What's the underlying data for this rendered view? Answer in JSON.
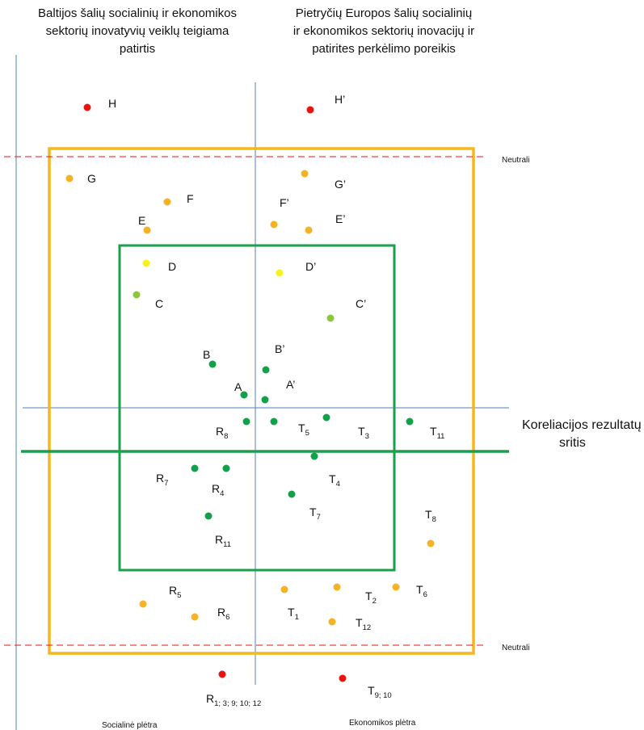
{
  "header": {
    "left": [
      "Baltijos šalių socialinių ir ekonomikos",
      "sektorių inovatyvių veiklų teigiama",
      "patirtis"
    ],
    "right": [
      "Pietryčių Europos šalių socialinių",
      "ir ekonomikos sektorių inovacijų ir",
      "patirites perkėlimo poreikis"
    ]
  },
  "labels": {
    "neutral_top": "Neutrali",
    "neutral_bottom": "Neutrali",
    "correlation_line1": "Koreliacijos rezultatų",
    "correlation_line2": "sritis",
    "axis_social": "Socialinė plėtra",
    "axis_economic": "Ekonomikos plėtra"
  },
  "colors": {
    "red": "#e8150f",
    "orange": "#f5b225",
    "yellow": "#f7f21a",
    "lightgreen": "#8cc63f",
    "green": "#13a04a",
    "frame": "#f5b81c",
    "inner": "#1aa04d",
    "axis": "#4f7fbf",
    "neutral": "#e8150f"
  },
  "points": [
    {
      "id": "H",
      "main": "H",
      "sub": "",
      "color": "red"
    },
    {
      "id": "H2",
      "main": "H’",
      "sub": "",
      "color": "red"
    },
    {
      "id": "G",
      "main": "G",
      "sub": "",
      "color": "orange"
    },
    {
      "id": "G2",
      "main": "G’",
      "sub": "",
      "color": "orange"
    },
    {
      "id": "F",
      "main": "F",
      "sub": "",
      "color": "orange"
    },
    {
      "id": "F2",
      "main": "F’",
      "sub": "",
      "color": "orange"
    },
    {
      "id": "E",
      "main": "E",
      "sub": "",
      "color": "orange"
    },
    {
      "id": "E2",
      "main": "E’",
      "sub": "",
      "color": "orange"
    },
    {
      "id": "D",
      "main": "D",
      "sub": "",
      "color": "yellow"
    },
    {
      "id": "D2",
      "main": "D’",
      "sub": "",
      "color": "yellow"
    },
    {
      "id": "C",
      "main": "C",
      "sub": "",
      "color": "lightgreen"
    },
    {
      "id": "C2",
      "main": "C’",
      "sub": "",
      "color": "lightgreen"
    },
    {
      "id": "B",
      "main": "B",
      "sub": "",
      "color": "green"
    },
    {
      "id": "B2",
      "main": "B’",
      "sub": "",
      "color": "green"
    },
    {
      "id": "A",
      "main": "A",
      "sub": "",
      "color": "green"
    },
    {
      "id": "A2",
      "main": "A’",
      "sub": "",
      "color": "green"
    },
    {
      "id": "R8",
      "main": "R",
      "sub": "8",
      "color": "green"
    },
    {
      "id": "T5",
      "main": "T",
      "sub": "5",
      "color": "green"
    },
    {
      "id": "T3",
      "main": "T",
      "sub": "3",
      "color": "green"
    },
    {
      "id": "T11",
      "main": "T",
      "sub": "11",
      "color": "green"
    },
    {
      "id": "T4",
      "main": "T",
      "sub": "4",
      "color": "green"
    },
    {
      "id": "R7",
      "main": "R",
      "sub": "7",
      "color": "green"
    },
    {
      "id": "R4",
      "main": "R",
      "sub": "4",
      "color": "green"
    },
    {
      "id": "T7",
      "main": "T",
      "sub": "7",
      "color": "green"
    },
    {
      "id": "R11",
      "main": "R",
      "sub": "11",
      "color": "green"
    },
    {
      "id": "T8",
      "main": "T",
      "sub": "8",
      "color": "orange"
    },
    {
      "id": "R5",
      "main": "R",
      "sub": "5",
      "color": "orange"
    },
    {
      "id": "R6",
      "main": "R",
      "sub": "6",
      "color": "orange"
    },
    {
      "id": "T1",
      "main": "T",
      "sub": "1",
      "color": "orange"
    },
    {
      "id": "T2",
      "main": "T",
      "sub": "2",
      "color": "orange"
    },
    {
      "id": "T6",
      "main": "T",
      "sub": "6",
      "color": "orange"
    },
    {
      "id": "T12",
      "main": "T",
      "sub": "12",
      "color": "orange"
    },
    {
      "id": "R1",
      "main": "R",
      "sub": "1; 3; 9; 10; 12",
      "color": "red"
    },
    {
      "id": "T9",
      "main": "T",
      "sub": "9; 10",
      "color": "red"
    }
  ]
}
